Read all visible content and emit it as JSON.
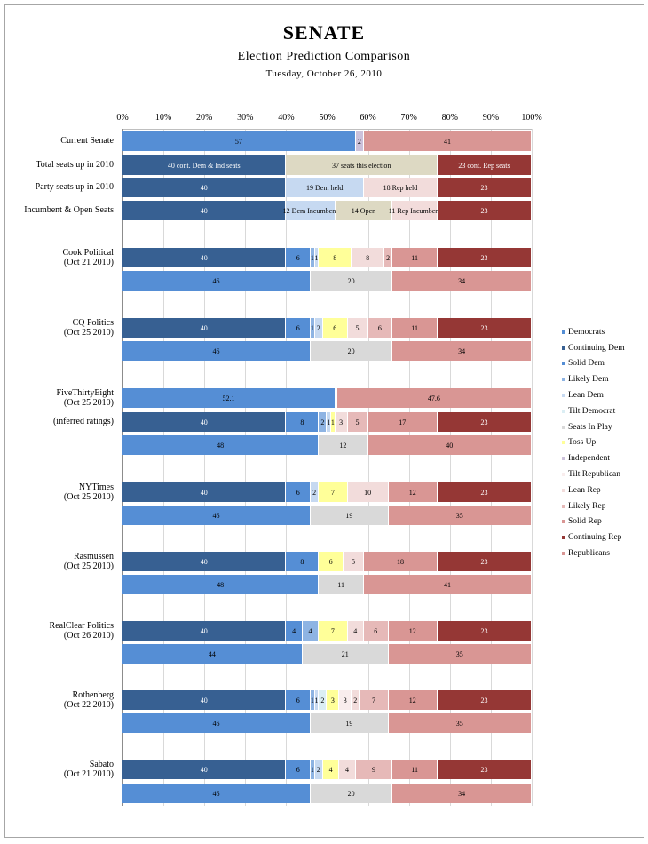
{
  "chart_data": {
    "type": "bar",
    "orientation": "horizontal",
    "stacked": "100%",
    "title": "SENATE",
    "subtitle": "Election Prediction Comparison",
    "date": "Tuesday, October 26, 2010",
    "xlim": [
      0,
      100
    ],
    "x_ticks": [
      "0%",
      "10%",
      "20%",
      "30%",
      "40%",
      "50%",
      "60%",
      "70%",
      "80%",
      "90%",
      "100%"
    ],
    "grid": true,
    "legend_position": "right",
    "colors": {
      "Democrats": "#558ed5",
      "Continuing Dem": "#376092",
      "Solid Dem": "#558ed5",
      "Likely Dem": "#8eb4e3",
      "Lean Dem": "#c6d9f1",
      "Tilt Democrat": "#dbeef4",
      "Seats In Play": "#d9d9d9",
      "Toss Up": "#ffff99",
      "Independent": "#ccc1da",
      "Tilt Republican": "#f9eded",
      "Lean Rep": "#f2dcdb",
      "Likely Rep": "#e6b9b8",
      "Solid Rep": "#d99694",
      "Continuing Rep": "#953735",
      "Republicans": "#d99694",
      "This Election": "#ddd9c3"
    },
    "legend": [
      "Democrats",
      "Continuing Dem",
      "Solid Dem",
      "Likely Dem",
      "Lean Dem",
      "Tilt Democrat",
      "Seats In Play",
      "Toss Up",
      "Independent",
      "Tilt Republican",
      "Lean Rep",
      "Likely Rep",
      "Solid Rep",
      "Continuing Rep",
      "Republicans"
    ],
    "rows": [
      {
        "label": "Current Senate",
        "segments": [
          {
            "cat": "Democrats",
            "value": 57,
            "text": "57"
          },
          {
            "cat": "Independent",
            "value": 2,
            "text": "2"
          },
          {
            "cat": "Republicans",
            "value": 41,
            "text": "41"
          }
        ]
      },
      {
        "label": "Total seats up in 2010",
        "segments": [
          {
            "cat": "Continuing Dem",
            "value": 40,
            "text": "40 cont. Dem & Ind seats"
          },
          {
            "cat": "This Election",
            "value": 37,
            "text": "37 seats this election"
          },
          {
            "cat": "Continuing Rep",
            "value": 23,
            "text": "23 cont. Rep seats"
          }
        ]
      },
      {
        "label": "Party seats up in 2010",
        "segments": [
          {
            "cat": "Continuing Dem",
            "value": 40,
            "text": "40"
          },
          {
            "cat": "Lean Dem",
            "value": 19,
            "text": "19 Dem held"
          },
          {
            "cat": "Lean Rep",
            "value": 18,
            "text": "18 Rep held"
          },
          {
            "cat": "Continuing Rep",
            "value": 23,
            "text": "23"
          }
        ]
      },
      {
        "label": "Incumbent & Open Seats",
        "segments": [
          {
            "cat": "Continuing Dem",
            "value": 40,
            "text": "40"
          },
          {
            "cat": "Lean Dem",
            "value": 12,
            "text": "12 Dem Incumbent"
          },
          {
            "cat": "This Election",
            "value": 14,
            "text": "14 Open"
          },
          {
            "cat": "Lean Rep",
            "value": 11,
            "text": "11 Rep Incumbent"
          },
          {
            "cat": "Continuing Rep",
            "value": 23,
            "text": "23"
          }
        ]
      },
      {
        "label": "Cook Political",
        "sublabel": "(Oct 21 2010)",
        "segments": [
          {
            "cat": "Continuing Dem",
            "value": 40,
            "text": "40"
          },
          {
            "cat": "Solid Dem",
            "value": 6,
            "text": "6"
          },
          {
            "cat": "Likely Dem",
            "value": 1,
            "text": "1"
          },
          {
            "cat": "Lean Dem",
            "value": 1,
            "text": "1"
          },
          {
            "cat": "Toss Up",
            "value": 8,
            "text": "8"
          },
          {
            "cat": "Lean Rep",
            "value": 8,
            "text": "8"
          },
          {
            "cat": "Likely Rep",
            "value": 2,
            "text": "2"
          },
          {
            "cat": "Solid Rep",
            "value": 11,
            "text": "11"
          },
          {
            "cat": "Continuing Rep",
            "value": 23,
            "text": "23"
          }
        ]
      },
      {
        "segments": [
          {
            "cat": "Democrats",
            "value": 46,
            "text": "46"
          },
          {
            "cat": "Seats In Play",
            "value": 20,
            "text": "20"
          },
          {
            "cat": "Republicans",
            "value": 34,
            "text": "34"
          }
        ]
      },
      {
        "label": "CQ Politics",
        "sublabel": "(Oct 25 2010)",
        "segments": [
          {
            "cat": "Continuing Dem",
            "value": 40,
            "text": "40"
          },
          {
            "cat": "Solid Dem",
            "value": 6,
            "text": "6"
          },
          {
            "cat": "Likely Dem",
            "value": 1,
            "text": "1"
          },
          {
            "cat": "Lean Dem",
            "value": 2,
            "text": "2"
          },
          {
            "cat": "Toss Up",
            "value": 6,
            "text": "6"
          },
          {
            "cat": "Lean Rep",
            "value": 5,
            "text": "5"
          },
          {
            "cat": "Likely Rep",
            "value": 6,
            "text": "6"
          },
          {
            "cat": "Solid Rep",
            "value": 11,
            "text": "11"
          },
          {
            "cat": "Continuing Rep",
            "value": 23,
            "text": "23"
          }
        ]
      },
      {
        "segments": [
          {
            "cat": "Democrats",
            "value": 46,
            "text": "46"
          },
          {
            "cat": "Seats In Play",
            "value": 20,
            "text": "20"
          },
          {
            "cat": "Republicans",
            "value": 34,
            "text": "34"
          }
        ]
      },
      {
        "label": "FiveThirtyEight",
        "sublabel": "(Oct 25 2010)",
        "segments": [
          {
            "cat": "Democrats",
            "value": 52.1,
            "text": "52.1"
          },
          {
            "cat": "Independent",
            "value": 0.4,
            "text": "0.4"
          },
          {
            "cat": "Republicans",
            "value": 47.6,
            "text": "47.6"
          }
        ]
      },
      {
        "label": "(inferred ratings)",
        "segments": [
          {
            "cat": "Continuing Dem",
            "value": 40,
            "text": "40"
          },
          {
            "cat": "Solid Dem",
            "value": 8,
            "text": "8"
          },
          {
            "cat": "Likely Dem",
            "value": 2,
            "text": "2"
          },
          {
            "cat": "Lean Dem",
            "value": 1,
            "text": "1"
          },
          {
            "cat": "Toss Up",
            "value": 1,
            "text": "1"
          },
          {
            "cat": "Lean Rep",
            "value": 3,
            "text": "3"
          },
          {
            "cat": "Likely Rep",
            "value": 5,
            "text": "5"
          },
          {
            "cat": "Solid Rep",
            "value": 17,
            "text": "17"
          },
          {
            "cat": "Continuing Rep",
            "value": 23,
            "text": "23"
          }
        ]
      },
      {
        "segments": [
          {
            "cat": "Democrats",
            "value": 48,
            "text": "48"
          },
          {
            "cat": "Seats In Play",
            "value": 12,
            "text": "12"
          },
          {
            "cat": "Republicans",
            "value": 40,
            "text": "40"
          }
        ]
      },
      {
        "label": "NYTimes",
        "sublabel": "(Oct 25 2010)",
        "segments": [
          {
            "cat": "Continuing Dem",
            "value": 40,
            "text": "40"
          },
          {
            "cat": "Solid Dem",
            "value": 6,
            "text": "6"
          },
          {
            "cat": "Lean Dem",
            "value": 2,
            "text": "2"
          },
          {
            "cat": "Toss Up",
            "value": 7,
            "text": "7"
          },
          {
            "cat": "Lean Rep",
            "value": 10,
            "text": "10"
          },
          {
            "cat": "Solid Rep",
            "value": 12,
            "text": "12"
          },
          {
            "cat": "Continuing Rep",
            "value": 23,
            "text": "23"
          }
        ]
      },
      {
        "segments": [
          {
            "cat": "Democrats",
            "value": 46,
            "text": "46"
          },
          {
            "cat": "Seats In Play",
            "value": 19,
            "text": "19"
          },
          {
            "cat": "Republicans",
            "value": 35,
            "text": "35"
          }
        ]
      },
      {
        "label": "Rasmussen",
        "sublabel": "(Oct 25 2010)",
        "segments": [
          {
            "cat": "Continuing Dem",
            "value": 40,
            "text": "40"
          },
          {
            "cat": "Solid Dem",
            "value": 8,
            "text": "8"
          },
          {
            "cat": "Toss Up",
            "value": 6,
            "text": "6"
          },
          {
            "cat": "Lean Rep",
            "value": 5,
            "text": "5"
          },
          {
            "cat": "Solid Rep",
            "value": 18,
            "text": "18"
          },
          {
            "cat": "Continuing Rep",
            "value": 23,
            "text": "23"
          }
        ]
      },
      {
        "segments": [
          {
            "cat": "Democrats",
            "value": 48,
            "text": "48"
          },
          {
            "cat": "Seats In Play",
            "value": 11,
            "text": "11"
          },
          {
            "cat": "Republicans",
            "value": 41,
            "text": "41"
          }
        ]
      },
      {
        "label": "RealClear Politics",
        "sublabel": "(Oct 26 2010)",
        "segments": [
          {
            "cat": "Continuing Dem",
            "value": 40,
            "text": "40"
          },
          {
            "cat": "Solid Dem",
            "value": 4,
            "text": "4"
          },
          {
            "cat": "Likely Dem",
            "value": 4,
            "text": "4"
          },
          {
            "cat": "Toss Up",
            "value": 7,
            "text": "7"
          },
          {
            "cat": "Lean Rep",
            "value": 4,
            "text": "4"
          },
          {
            "cat": "Likely Rep",
            "value": 6,
            "text": "6"
          },
          {
            "cat": "Solid Rep",
            "value": 12,
            "text": "12"
          },
          {
            "cat": "Continuing Rep",
            "value": 23,
            "text": "23"
          }
        ]
      },
      {
        "segments": [
          {
            "cat": "Democrats",
            "value": 44,
            "text": "44"
          },
          {
            "cat": "Seats In Play",
            "value": 21,
            "text": "21"
          },
          {
            "cat": "Republicans",
            "value": 35,
            "text": "35"
          }
        ]
      },
      {
        "label": "Rothenberg",
        "sublabel": "(Oct 22 2010)",
        "segments": [
          {
            "cat": "Continuing Dem",
            "value": 40,
            "text": "40"
          },
          {
            "cat": "Solid Dem",
            "value": 6,
            "text": "6"
          },
          {
            "cat": "Likely Dem",
            "value": 1,
            "text": "1"
          },
          {
            "cat": "Lean Dem",
            "value": 1,
            "text": "1"
          },
          {
            "cat": "Tilt Democrat",
            "value": 2,
            "text": "2"
          },
          {
            "cat": "Toss Up",
            "value": 3,
            "text": "3"
          },
          {
            "cat": "Tilt Republican",
            "value": 3,
            "text": "3"
          },
          {
            "cat": "Lean Rep",
            "value": 2,
            "text": "2"
          },
          {
            "cat": "Likely Rep",
            "value": 7,
            "text": "7"
          },
          {
            "cat": "Solid Rep",
            "value": 12,
            "text": "12"
          },
          {
            "cat": "Continuing Rep",
            "value": 23,
            "text": "23"
          }
        ]
      },
      {
        "segments": [
          {
            "cat": "Democrats",
            "value": 46,
            "text": "46"
          },
          {
            "cat": "Seats In Play",
            "value": 19,
            "text": "19"
          },
          {
            "cat": "Republicans",
            "value": 35,
            "text": "35"
          }
        ]
      },
      {
        "label": "Sabato",
        "sublabel": "(Oct 21 2010)",
        "segments": [
          {
            "cat": "Continuing Dem",
            "value": 40,
            "text": "40"
          },
          {
            "cat": "Solid Dem",
            "value": 6,
            "text": "6"
          },
          {
            "cat": "Likely Dem",
            "value": 1,
            "text": "1"
          },
          {
            "cat": "Lean Dem",
            "value": 2,
            "text": "2"
          },
          {
            "cat": "Toss Up",
            "value": 4,
            "text": "4"
          },
          {
            "cat": "Lean Rep",
            "value": 4,
            "text": "4"
          },
          {
            "cat": "Likely Rep",
            "value": 9,
            "text": "9"
          },
          {
            "cat": "Solid Rep",
            "value": 11,
            "text": "11"
          },
          {
            "cat": "Continuing Rep",
            "value": 23,
            "text": "23"
          }
        ]
      },
      {
        "segments": [
          {
            "cat": "Democrats",
            "value": 46,
            "text": "46"
          },
          {
            "cat": "Seats In Play",
            "value": 20,
            "text": "20"
          },
          {
            "cat": "Republicans",
            "value": 34,
            "text": "34"
          }
        ]
      }
    ]
  }
}
